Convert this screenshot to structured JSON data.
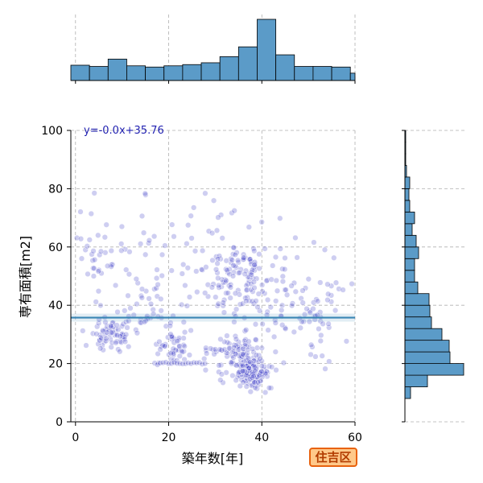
{
  "badge": {
    "label": "住吉区"
  },
  "colors": {
    "scatter": "#3a3ac8",
    "hist": "#5b9bc8",
    "fit_line": "#3a86b5",
    "fit_text": "#1f1fb0",
    "badge_border": "#e8620e",
    "badge_fill": "#ffc98a"
  },
  "chart_data": [
    {
      "type": "scatter",
      "xlabel": "築年数[年]",
      "ylabel": "専有面積[m2]",
      "xlim": [
        -1,
        60
      ],
      "ylim": [
        0,
        100
      ],
      "xticks": [
        "0",
        "20",
        "40",
        "60"
      ],
      "yticks": [
        "0",
        "20",
        "40",
        "60",
        "80",
        "100"
      ],
      "grid": true,
      "fit": {
        "label": "y=-0.0x+35.76",
        "slope": 0.0,
        "intercept": 35.76
      },
      "clusters": [
        {
          "cx": 8,
          "cy": 29,
          "sx": 3.5,
          "sy": 4,
          "n": 70
        },
        {
          "cx": 22,
          "cy": 26,
          "sx": 3,
          "sy": 5,
          "n": 50
        },
        {
          "cx": 38,
          "cy": 17,
          "sx": 3,
          "sy": 4,
          "n": 140
        },
        {
          "cx": 34,
          "cy": 24,
          "sx": 4,
          "sy": 6,
          "n": 70
        },
        {
          "cx": 36,
          "cy": 48,
          "sx": 6,
          "sy": 10,
          "n": 130
        },
        {
          "cx": 50,
          "cy": 38,
          "sx": 6,
          "sy": 12,
          "n": 80
        },
        {
          "cx": 25,
          "cy": 60,
          "sx": 15,
          "sy": 15,
          "n": 70
        },
        {
          "cx": 5,
          "cy": 55,
          "sx": 4,
          "sy": 12,
          "n": 30
        },
        {
          "cx": 15,
          "cy": 40,
          "sx": 5,
          "sy": 8,
          "n": 40
        }
      ],
      "lines": [
        {
          "y": 20,
          "x_from": 17,
          "x_to": 28,
          "step": 0.6
        },
        {
          "y": 25,
          "x_from": 28,
          "x_to": 40,
          "step": 1.0
        }
      ]
    },
    {
      "type": "bar",
      "role": "x-marginal-histogram",
      "bins": [
        [
          -1,
          3
        ],
        [
          3,
          7
        ],
        [
          7,
          11
        ],
        [
          11,
          15
        ],
        [
          15,
          19
        ],
        [
          19,
          23
        ],
        [
          23,
          27
        ],
        [
          27,
          31
        ],
        [
          31,
          35
        ],
        [
          35,
          39
        ],
        [
          39,
          43
        ],
        [
          43,
          47
        ],
        [
          47,
          51
        ],
        [
          51,
          55
        ],
        [
          55,
          59
        ],
        [
          59,
          60
        ]
      ],
      "counts": [
        25,
        23,
        35,
        24,
        22,
        24,
        26,
        29,
        39,
        55,
        100,
        42,
        23,
        23,
        22,
        12
      ]
    },
    {
      "type": "bar",
      "role": "y-marginal-histogram",
      "bins": [
        [
          8,
          12
        ],
        [
          12,
          16
        ],
        [
          16,
          20
        ],
        [
          20,
          24
        ],
        [
          24,
          28
        ],
        [
          28,
          32
        ],
        [
          32,
          36
        ],
        [
          36,
          40
        ],
        [
          40,
          44
        ],
        [
          44,
          48
        ],
        [
          48,
          52
        ],
        [
          52,
          56
        ],
        [
          56,
          60
        ],
        [
          60,
          64
        ],
        [
          64,
          68
        ],
        [
          68,
          72
        ],
        [
          72,
          76
        ],
        [
          76,
          80
        ],
        [
          80,
          84
        ],
        [
          84,
          88
        ],
        [
          88,
          92
        ],
        [
          92,
          96
        ],
        [
          96,
          100
        ]
      ],
      "counts": [
        7,
        28,
        73,
        56,
        55,
        46,
        33,
        31,
        30,
        16,
        12,
        12,
        17,
        14,
        9,
        12,
        6,
        5,
        6,
        2,
        1,
        1,
        1
      ]
    }
  ]
}
